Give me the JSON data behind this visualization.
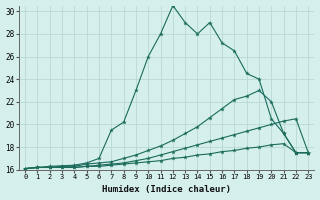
{
  "xlabel": "Humidex (Indice chaleur)",
  "ylabel": "",
  "xlim": [
    -0.5,
    23.5
  ],
  "ylim": [
    16,
    30.5
  ],
  "xticks": [
    0,
    1,
    2,
    3,
    4,
    5,
    6,
    7,
    8,
    9,
    10,
    11,
    12,
    13,
    14,
    15,
    16,
    17,
    18,
    19,
    20,
    21,
    22,
    23
  ],
  "yticks": [
    16,
    18,
    20,
    22,
    24,
    26,
    28,
    30
  ],
  "bg_color": "#d5efed",
  "grid_color": "#b8d8d6",
  "line_color": "#1a6b5a",
  "line1_x": [
    0,
    1,
    2,
    3,
    4,
    5,
    6,
    7,
    8,
    9,
    10,
    11,
    12,
    13,
    14,
    15,
    16,
    17,
    18,
    19,
    20,
    21,
    22,
    23
  ],
  "line1_y": [
    16.1,
    16.2,
    16.2,
    16.2,
    16.2,
    16.3,
    16.3,
    16.4,
    16.5,
    16.6,
    16.7,
    16.8,
    17.0,
    17.1,
    17.3,
    17.4,
    17.6,
    17.7,
    17.9,
    18.0,
    18.2,
    18.3,
    17.5,
    17.5
  ],
  "line2_x": [
    0,
    1,
    2,
    3,
    4,
    5,
    6,
    7,
    8,
    9,
    10,
    11,
    12,
    13,
    14,
    15,
    16,
    17,
    18,
    19,
    20,
    21,
    22,
    23
  ],
  "line2_y": [
    16.1,
    16.2,
    16.2,
    16.2,
    16.2,
    16.3,
    16.4,
    16.5,
    16.6,
    16.8,
    17.0,
    17.3,
    17.6,
    17.9,
    18.2,
    18.5,
    18.8,
    19.1,
    19.4,
    19.7,
    20.0,
    20.3,
    20.5,
    17.5
  ],
  "line3_x": [
    0,
    1,
    2,
    3,
    4,
    5,
    6,
    7,
    8,
    9,
    10,
    11,
    12,
    13,
    14,
    15,
    16,
    17,
    18,
    19,
    20,
    21,
    22,
    23
  ],
  "line3_y": [
    16.1,
    16.2,
    16.2,
    16.3,
    16.3,
    16.5,
    16.6,
    16.7,
    17.0,
    17.3,
    17.7,
    18.1,
    18.6,
    19.2,
    19.8,
    20.6,
    21.4,
    22.2,
    22.5,
    23.0,
    22.0,
    19.2,
    17.5,
    17.5
  ],
  "line4_x": [
    0,
    2,
    4,
    5,
    6,
    7,
    8,
    9,
    10,
    11,
    12,
    13,
    14,
    15,
    16,
    17,
    18,
    19,
    20,
    21,
    22,
    23
  ],
  "line4_y": [
    16.1,
    16.3,
    16.4,
    16.6,
    17.0,
    19.5,
    20.2,
    23.0,
    26.0,
    28.0,
    30.5,
    29.0,
    28.0,
    29.0,
    27.2,
    26.5,
    24.5,
    24.0,
    20.5,
    19.2,
    17.5,
    17.5
  ],
  "marker": "*",
  "markersize": 3.5
}
